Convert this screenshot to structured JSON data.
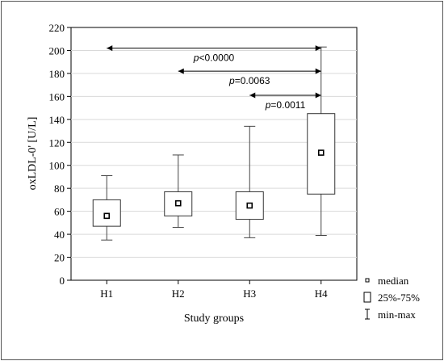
{
  "chart_data": {
    "type": "box",
    "ylabel": "oxLDL-0' [U/L]",
    "xlabel": "Study groups",
    "ylim": [
      0,
      220
    ],
    "y_ticks": [
      0,
      20,
      40,
      60,
      80,
      100,
      120,
      140,
      160,
      180,
      200,
      220
    ],
    "grid": true,
    "categories": [
      "H1",
      "H2",
      "H3",
      "H4"
    ],
    "boxes": [
      {
        "group": "H1",
        "min": 35,
        "q1": 47,
        "median": 56,
        "q3": 70,
        "max": 91
      },
      {
        "group": "H2",
        "min": 46,
        "q1": 56,
        "median": 67,
        "q3": 77,
        "max": 109
      },
      {
        "group": "H3",
        "min": 37,
        "q1": 53,
        "median": 65,
        "q3": 77,
        "max": 134
      },
      {
        "group": "H4",
        "min": 39,
        "q1": 75,
        "median": 111,
        "q3": 145,
        "max": 203
      }
    ],
    "comparisons": [
      {
        "from": "H1",
        "to": "H4",
        "y": 202,
        "label_prefix": "p",
        "label_value": "<0.0000"
      },
      {
        "from": "H2",
        "to": "H4",
        "y": 182,
        "label_prefix": "p",
        "label_value": "=0.0063"
      },
      {
        "from": "H3",
        "to": "H4",
        "y": 161,
        "label_prefix": "p",
        "label_value": "=0.0011"
      }
    ],
    "legend": {
      "placement": "bottom-right",
      "items": [
        {
          "symbol": "median-square",
          "label": "median"
        },
        {
          "symbol": "box",
          "label": "25%-75%"
        },
        {
          "symbol": "whisker",
          "label": "min-max"
        }
      ]
    }
  }
}
